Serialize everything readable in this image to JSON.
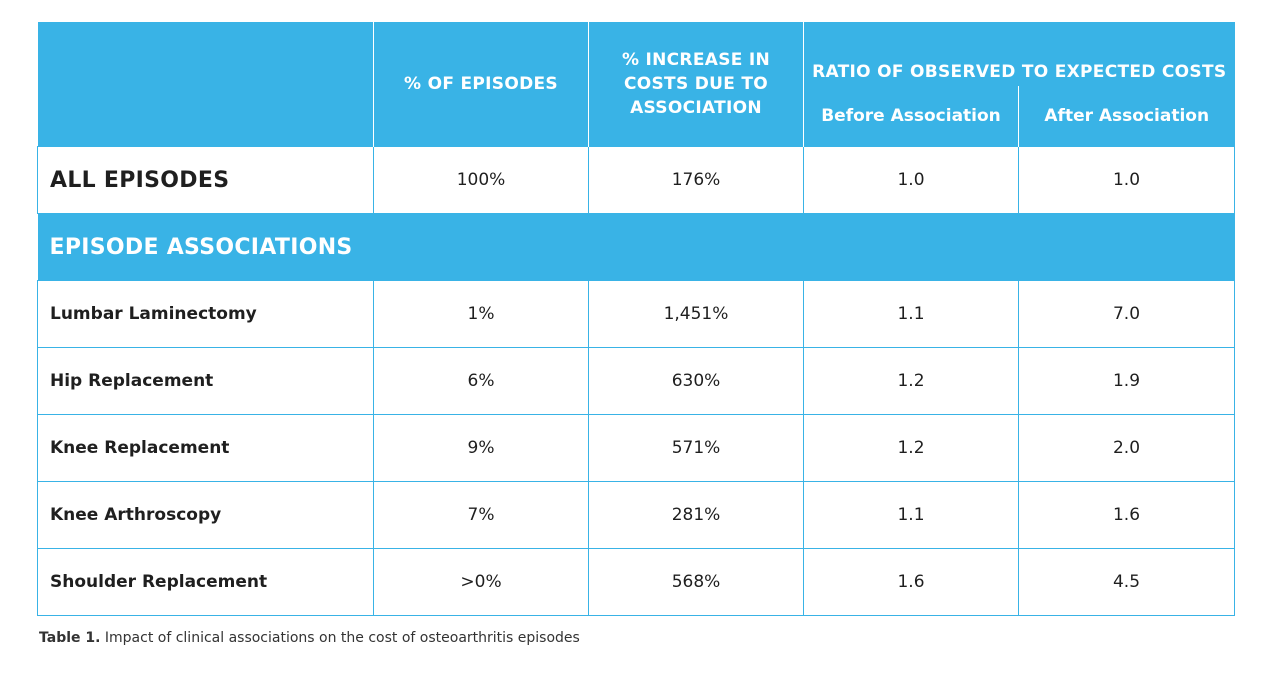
{
  "header": {
    "col_episodes": "% OF EPISODES",
    "col_increase": "% INCREASE IN COSTS DUE TO ASSOCIATION",
    "col_ratio_group": "RATIO OF OBSERVED TO EXPECTED COSTS",
    "col_before": "Before Association",
    "col_after": "After Association"
  },
  "all_row": {
    "label": "ALL EPISODES",
    "episodes": "100%",
    "increase": "176%",
    "before": "1.0",
    "after": "1.0"
  },
  "section": {
    "label": "EPISODE ASSOCIATIONS"
  },
  "rows": [
    {
      "label": "Lumbar Laminectomy",
      "episodes": "1%",
      "increase": "1,451%",
      "before": "1.1",
      "after": "7.0"
    },
    {
      "label": "Hip Replacement",
      "episodes": "6%",
      "increase": "630%",
      "before": "1.2",
      "after": "1.9"
    },
    {
      "label": "Knee Replacement",
      "episodes": "9%",
      "increase": "571%",
      "before": "1.2",
      "after": "2.0"
    },
    {
      "label": "Knee Arthroscopy",
      "episodes": "7%",
      "increase": "281%",
      "before": "1.1",
      "after": "1.6"
    },
    {
      "label": "Shoulder Replacement",
      "episodes": ">0%",
      "increase": "568%",
      "before": "1.6",
      "after": "4.5"
    }
  ],
  "caption": {
    "label": "Table 1.",
    "text": " Impact of clinical associations on the cost of osteoarthritis episodes"
  },
  "colors": {
    "accent": "#39b3e6",
    "text": "#1f1f1f"
  }
}
